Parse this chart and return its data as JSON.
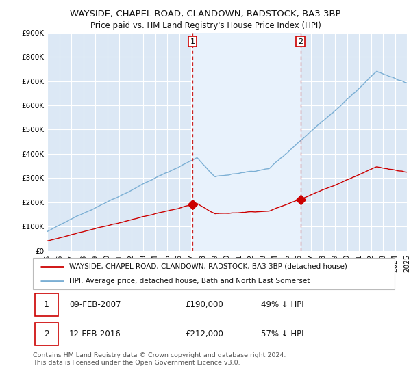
{
  "title": "WAYSIDE, CHAPEL ROAD, CLANDOWN, RADSTOCK, BA3 3BP",
  "subtitle": "Price paid vs. HM Land Registry's House Price Index (HPI)",
  "ylim": [
    0,
    900000
  ],
  "yticks": [
    0,
    100000,
    200000,
    300000,
    400000,
    500000,
    600000,
    700000,
    800000,
    900000
  ],
  "ytick_labels": [
    "£0",
    "£100K",
    "£200K",
    "£300K",
    "£400K",
    "£500K",
    "£600K",
    "£700K",
    "£800K",
    "£900K"
  ],
  "background_color": "#ffffff",
  "plot_bg_color": "#dce8f5",
  "shade_color": "#e8f2fc",
  "grid_color": "#ffffff",
  "hpi_color": "#7bafd4",
  "price_color": "#cc0000",
  "sale1_x": 2007.12,
  "sale1_price": 190000,
  "sale2_x": 2016.12,
  "sale2_price": 212000,
  "legend_property": "WAYSIDE, CHAPEL ROAD, CLANDOWN, RADSTOCK, BA3 3BP (detached house)",
  "legend_hpi": "HPI: Average price, detached house, Bath and North East Somerset",
  "table_row1": [
    "1",
    "09-FEB-2007",
    "£190,000",
    "49% ↓ HPI"
  ],
  "table_row2": [
    "2",
    "12-FEB-2016",
    "£212,000",
    "57% ↓ HPI"
  ],
  "footnote": "Contains HM Land Registry data © Crown copyright and database right 2024.\nThis data is licensed under the Open Government Licence v3.0.",
  "title_fontsize": 9.5,
  "subtitle_fontsize": 8.5,
  "tick_fontsize": 7.5
}
